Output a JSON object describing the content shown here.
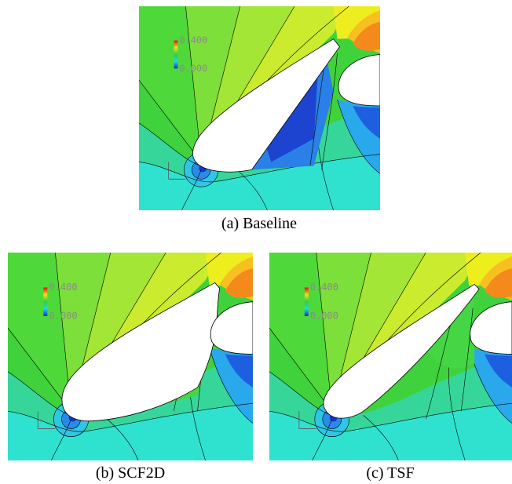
{
  "figure": {
    "panels": [
      {
        "legend_max": "0.400",
        "legend_min": "0.000",
        "caption": "(a) Baseline"
      },
      {
        "legend_max": "0.400",
        "legend_min": "0.000",
        "caption": "(b) SCF2D"
      },
      {
        "legend_max": "0.400",
        "legend_min": "0.000",
        "caption": "(c) TSF"
      }
    ]
  }
}
